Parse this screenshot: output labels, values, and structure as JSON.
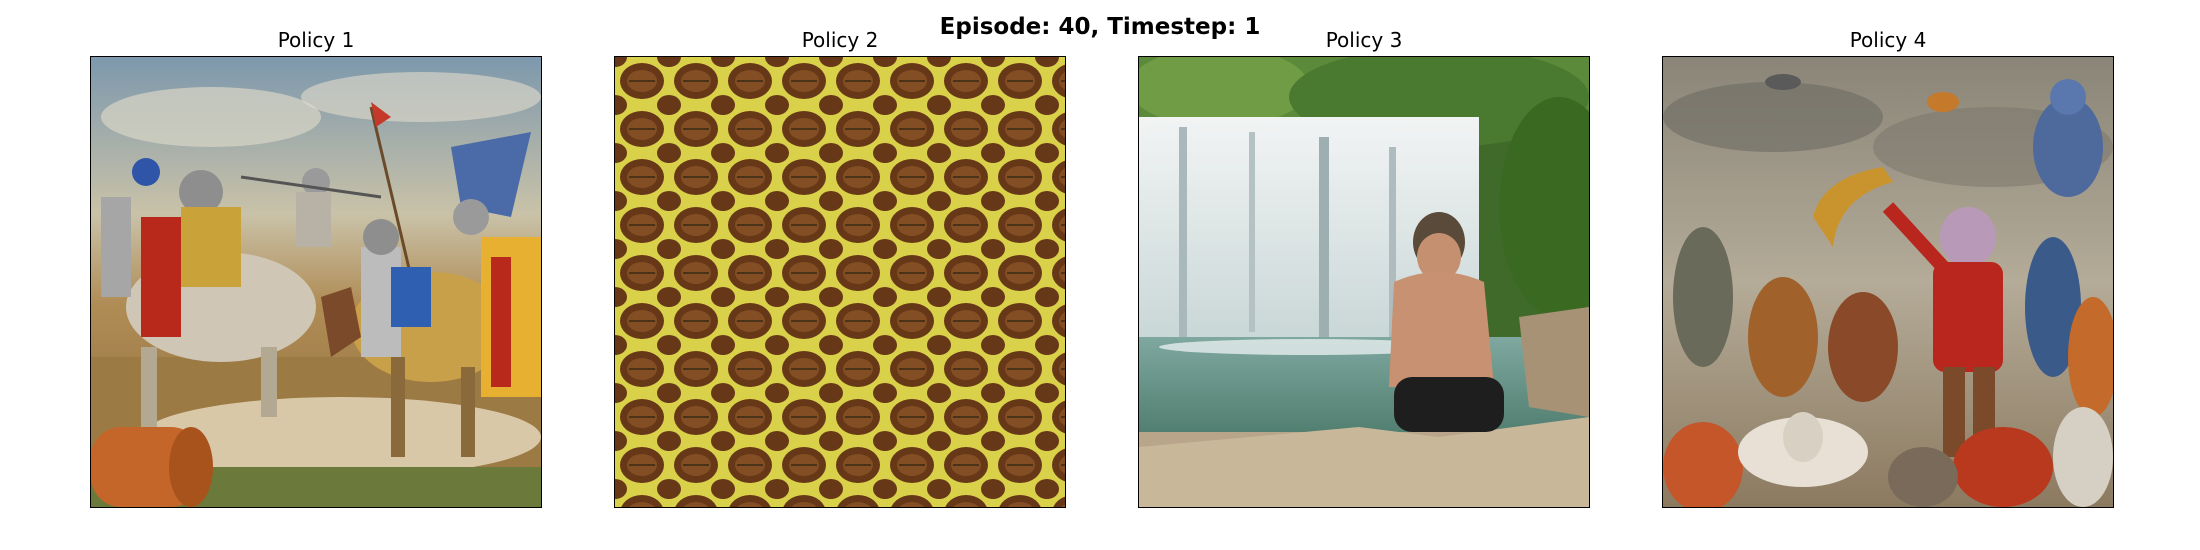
{
  "figure": {
    "title": "Episode: 40, Timestep: 1"
  },
  "panels": [
    {
      "title": "Policy 1",
      "image": "medieval-knights-battle-painting"
    },
    {
      "title": "Policy 2",
      "image": "yellow-cellular-leaf-pattern"
    },
    {
      "title": "Policy 3",
      "image": "man-sitting-by-waterfall-photo"
    },
    {
      "title": "Policy 4",
      "image": "surreal-creatures-painting"
    }
  ]
}
